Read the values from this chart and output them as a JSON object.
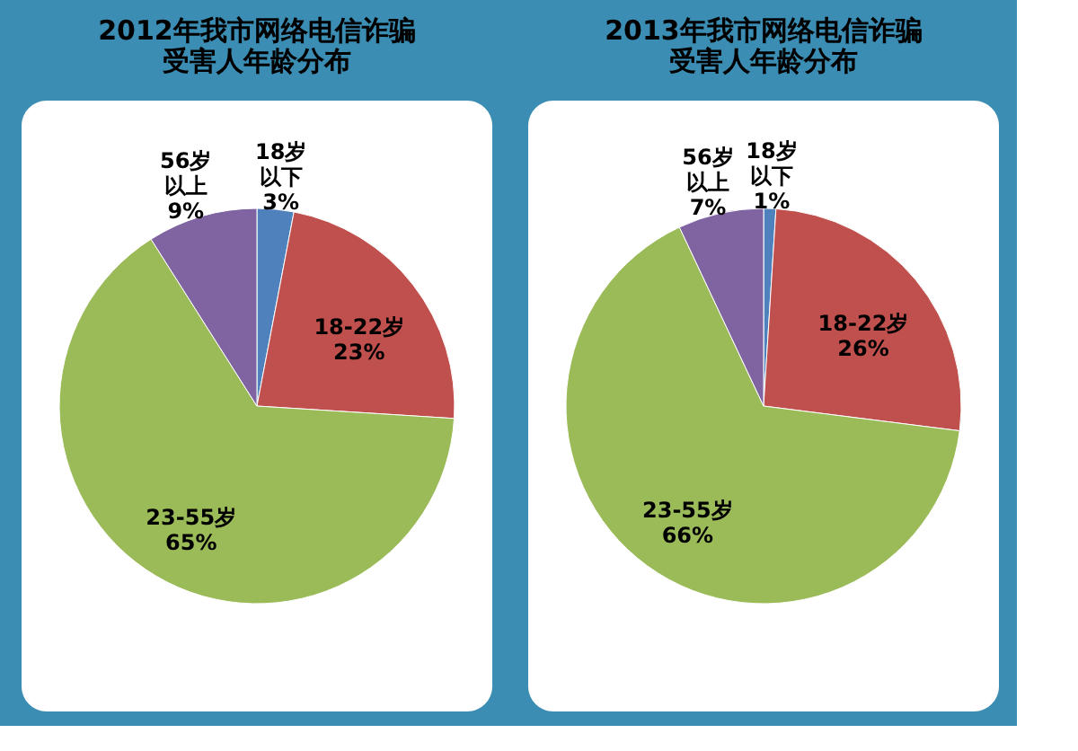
{
  "chart_data": [
    {
      "type": "pie",
      "title": "2012年我市网络电信诈骗受害人年龄分布",
      "categories": [
        "18岁以下",
        "18-22岁",
        "23-55岁",
        "56岁以上"
      ],
      "values": [
        3,
        23,
        65,
        9
      ],
      "value_labels": [
        "3%",
        "23%",
        "65%",
        "9%"
      ],
      "colors": [
        "#4f81bd",
        "#c0504d",
        "#9bbb59",
        "#8064a2"
      ],
      "legend": false
    },
    {
      "type": "pie",
      "title": "2013年我市网络电信诈骗受害人年龄分布",
      "categories": [
        "18岁以下",
        "18-22岁",
        "23-55岁",
        "56岁以上"
      ],
      "values": [
        1,
        26,
        66,
        7
      ],
      "value_labels": [
        "1%",
        "26%",
        "66%",
        "7%"
      ],
      "colors": [
        "#4f81bd",
        "#c0504d",
        "#9bbb59",
        "#8064a2"
      ],
      "legend": false
    }
  ]
}
